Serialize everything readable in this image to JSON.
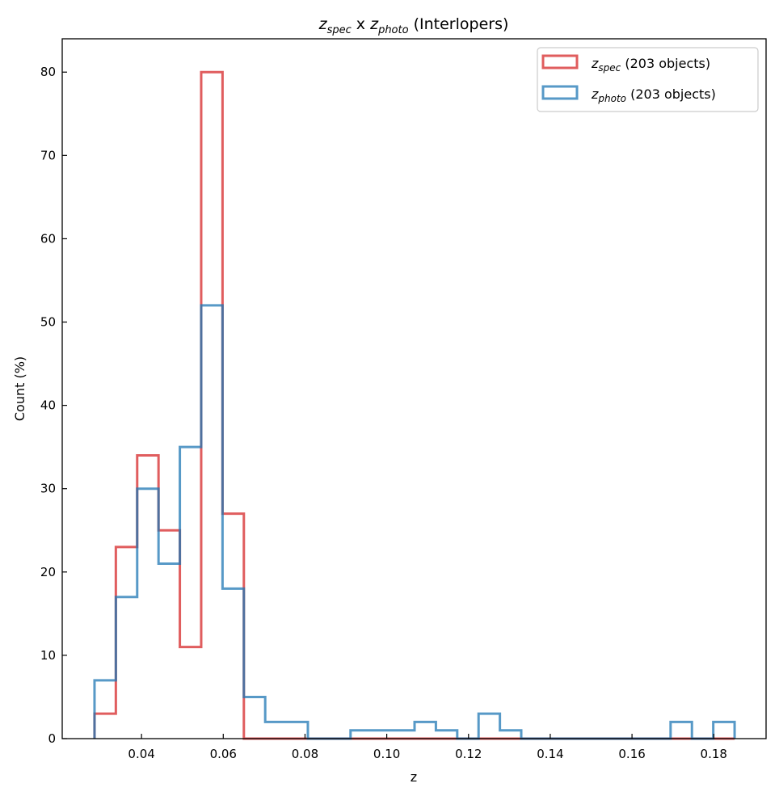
{
  "chart_data": {
    "type": "histogram-step",
    "title": {
      "var1": "z",
      "sub1": "spec",
      "mid": " x ",
      "var2": "z",
      "sub2": "photo",
      "suffix": " (Interlopers)"
    },
    "xlabel": "z",
    "ylabel": "Count (%)",
    "xlim": [
      0.0206,
      0.1928
    ],
    "ylim": [
      0,
      84
    ],
    "xticks": [
      0.04,
      0.06,
      0.08,
      0.1,
      0.12,
      0.14,
      0.16,
      0.18
    ],
    "xtick_labels": [
      "0.04",
      "0.06",
      "0.08",
      "0.10",
      "0.12",
      "0.14",
      "0.16",
      "0.18"
    ],
    "yticks": [
      0,
      10,
      20,
      30,
      40,
      50,
      60,
      70,
      80
    ],
    "ytick_labels": [
      "0",
      "10",
      "20",
      "30",
      "40",
      "50",
      "60",
      "70",
      "80"
    ],
    "bin_range": [
      0.0285,
      0.1851
    ],
    "n_bins": 30,
    "grid": false,
    "legend_position": "top-right",
    "series": [
      {
        "name": {
          "var": "z",
          "sub": "spec",
          "suffix": " (203 objects)"
        },
        "color": "#d62728",
        "values": [
          3,
          23,
          34,
          25,
          11,
          80,
          27,
          0,
          0,
          0,
          0,
          0,
          0,
          0,
          0,
          0,
          0,
          0,
          0,
          0,
          0,
          0,
          0,
          0,
          0,
          0,
          0,
          0,
          0,
          0
        ]
      },
      {
        "name": {
          "var": "z",
          "sub": "photo",
          "suffix": " (203 objects)"
        },
        "color": "#1f77b4",
        "values": [
          7,
          17,
          30,
          21,
          35,
          52,
          18,
          5,
          2,
          2,
          0,
          0,
          1,
          1,
          1,
          2,
          1,
          0,
          3,
          1,
          0,
          0,
          0,
          0,
          0,
          0,
          0,
          2,
          0,
          2
        ]
      }
    ]
  }
}
